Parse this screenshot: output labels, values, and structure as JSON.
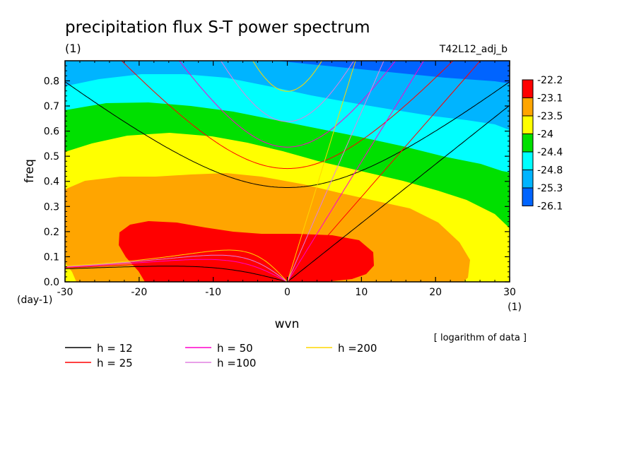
{
  "chart_data": {
    "type": "heatmap",
    "title": "precipitation flux S-T power spectrum",
    "subtitle_left": "(1)",
    "subtitle_right": "T42L12_adj_b",
    "xlabel": "wvn",
    "ylabel": "freq",
    "x_unit": "(1)",
    "y_unit": "(day-1)",
    "xlim": [
      -30,
      30
    ],
    "ylim": [
      0,
      0.88
    ],
    "x_ticks": [
      -30,
      -20,
      -10,
      0,
      10,
      20,
      30
    ],
    "x_tick_labels": [
      "-30",
      "-20",
      "-10",
      "0",
      "10",
      "20",
      "30"
    ],
    "y_ticks": [
      0,
      0.1,
      0.2,
      0.3,
      0.4,
      0.5,
      0.6,
      0.7,
      0.8
    ],
    "y_tick_labels": [
      "0.0",
      "0.1",
      "0.2",
      "0.3",
      "0.4",
      "0.5",
      "0.6",
      "0.7",
      "0.8"
    ],
    "note": "[ logarithm of data ]",
    "colorbar": {
      "labels": [
        "-22.2",
        "-23.1",
        "-23.5",
        "-24",
        "-24.4",
        "-24.8",
        "-25.3",
        "-26.1"
      ],
      "colors": [
        "#ff0000",
        "#ffa500",
        "#ffff00",
        "#00e000",
        "#00ffff",
        "#00b4ff",
        "#0064ff"
      ]
    },
    "band_colors": {
      "red": "#ff0000",
      "orange": "#ffa500",
      "yellow": "#ffff00",
      "green": "#00e000",
      "cyan": "#00ffff",
      "lightblue": "#00b4ff",
      "blue": "#0064ff"
    },
    "dispersion_curves": [
      {
        "name": "h = 12",
        "h": 12,
        "color": "#000000"
      },
      {
        "name": "h = 25",
        "h": 25,
        "color": "#ff0000"
      },
      {
        "name": "h = 50",
        "h": 50,
        "color": "#ff00cc"
      },
      {
        "name": "h =100",
        "h": 100,
        "color": "#e080e0"
      },
      {
        "name": "h =200",
        "h": 200,
        "color": "#ffd700"
      }
    ]
  }
}
